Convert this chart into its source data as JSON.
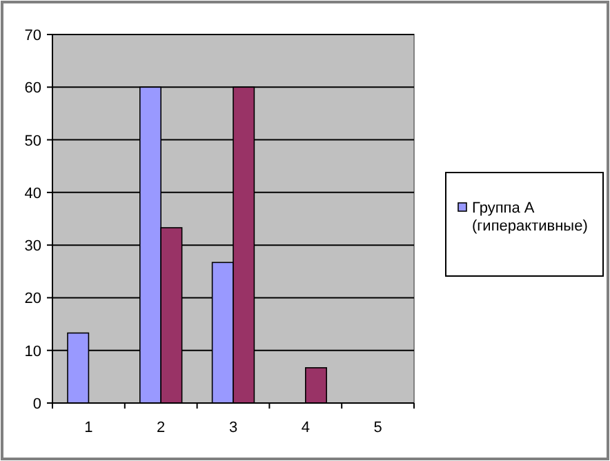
{
  "chart_data": {
    "type": "bar",
    "categories": [
      "1",
      "2",
      "3",
      "4",
      "5"
    ],
    "series": [
      {
        "name": "Группа А (гиперактивные)",
        "color": "#9999ff",
        "values": [
          13.3,
          60,
          26.7,
          0,
          0
        ]
      },
      {
        "color": "#993366",
        "values": [
          0,
          33.3,
          60,
          6.7,
          0
        ]
      }
    ],
    "ylim": [
      0,
      70
    ],
    "yticks": [
      0,
      10,
      20,
      30,
      40,
      50,
      60,
      70
    ],
    "grid": "y",
    "legend": "right"
  }
}
